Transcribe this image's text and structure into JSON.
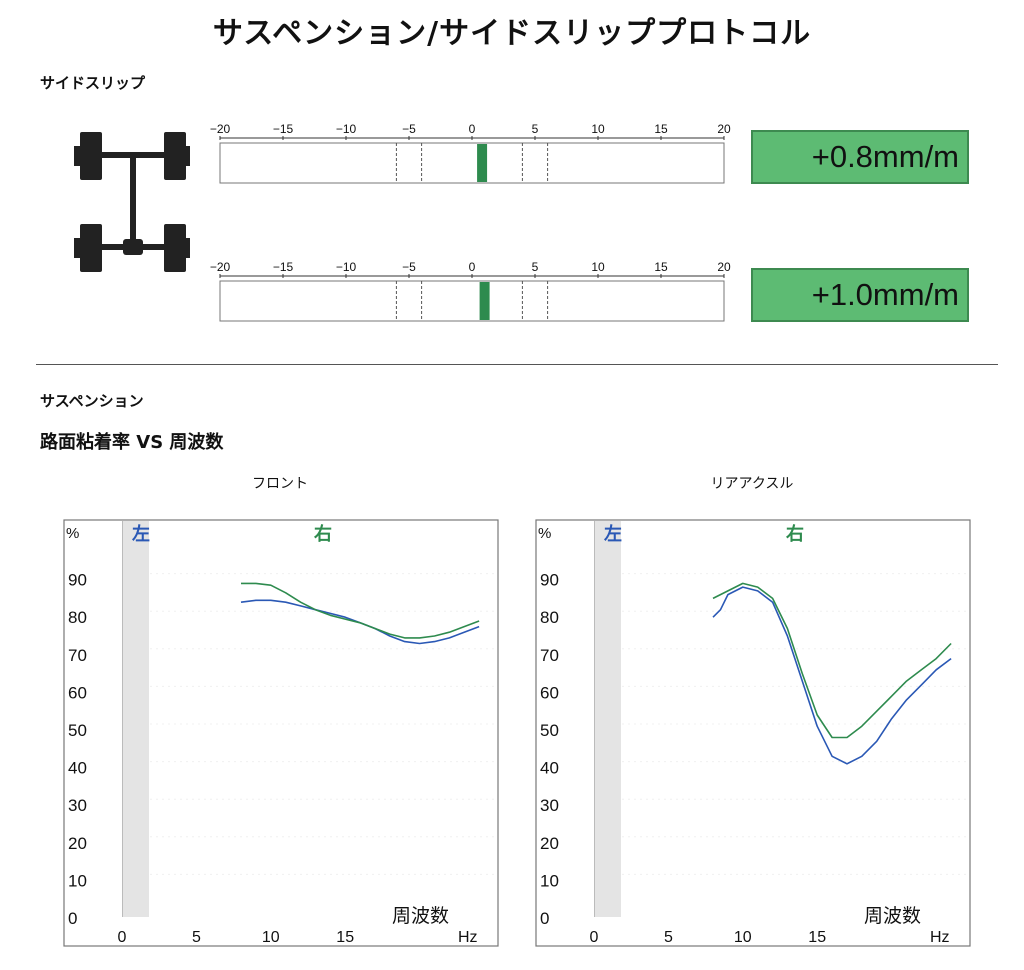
{
  "page": {
    "title": "サスペンション/サイドスリッププロトコル"
  },
  "side_slip": {
    "label": "サイドスリップ",
    "scale_ticks": [
      "−20",
      "−15",
      "−10",
      "−5",
      "0",
      "5",
      "10",
      "15",
      "20"
    ],
    "scale_range": [
      -20,
      20
    ],
    "dashed_markers": [
      -6,
      -4,
      4,
      6
    ],
    "colors": {
      "indicator": "#2e8b4e",
      "readout_bg": "#5dbb73"
    },
    "front": {
      "value": 0.8,
      "readout": "+0.8mm/m"
    },
    "rear": {
      "value": 1.0,
      "readout": "+1.0mm/m"
    }
  },
  "suspension": {
    "label": "サスペンション",
    "subtitle": "路面粘着率 VS 周波数"
  },
  "chart_data": [
    {
      "type": "line",
      "title": "フロント",
      "ylabel": "%",
      "xlabel": "周波数",
      "xunit": "Hz",
      "xlim": [
        0,
        25
      ],
      "ylim": [
        0,
        100
      ],
      "x_ticks": [
        "0",
        "5",
        "10",
        "15"
      ],
      "y_ticks": [
        "0",
        "10",
        "20",
        "30",
        "40",
        "50",
        "60",
        "70",
        "80",
        "90"
      ],
      "legend": [
        {
          "name": "左",
          "color": "#2a58b5"
        },
        {
          "name": "右",
          "color": "#2e8b4e"
        }
      ],
      "series": [
        {
          "name": "左",
          "color": "#2a58b5",
          "x": [
            8,
            9,
            10,
            11,
            12,
            13,
            14,
            15,
            16,
            17,
            18,
            19,
            20,
            21,
            22,
            23,
            24
          ],
          "y": [
            84,
            84.5,
            84.5,
            84,
            83,
            82,
            81,
            80,
            78.5,
            77,
            75,
            73.5,
            73,
            73.5,
            74.5,
            76,
            77.5
          ]
        },
        {
          "name": "右",
          "color": "#2e8b4e",
          "x": [
            8,
            9,
            10,
            11,
            12,
            13,
            14,
            15,
            16,
            17,
            18,
            19,
            20,
            21,
            22,
            23,
            24
          ],
          "y": [
            89,
            89,
            88.5,
            86.5,
            84,
            82,
            80.5,
            79.5,
            78.5,
            77,
            75.5,
            74.5,
            74.5,
            75,
            76,
            77.5,
            79
          ]
        }
      ]
    },
    {
      "type": "line",
      "title": "リアアクスル",
      "ylabel": "%",
      "xlabel": "周波数",
      "xunit": "Hz",
      "xlim": [
        0,
        25
      ],
      "ylim": [
        0,
        100
      ],
      "x_ticks": [
        "0",
        "5",
        "10",
        "15"
      ],
      "y_ticks": [
        "0",
        "10",
        "20",
        "30",
        "40",
        "50",
        "60",
        "70",
        "80",
        "90"
      ],
      "legend": [
        {
          "name": "左",
          "color": "#2a58b5"
        },
        {
          "name": "右",
          "color": "#2e8b4e"
        }
      ],
      "series": [
        {
          "name": "左",
          "color": "#2a58b5",
          "x": [
            8,
            8.5,
            9,
            10,
            11,
            12,
            13,
            14,
            15,
            16,
            17,
            18,
            19,
            20,
            21,
            22,
            23,
            24
          ],
          "y": [
            80,
            82,
            86,
            88,
            87,
            84,
            75,
            63,
            51,
            43,
            41,
            43,
            47,
            53,
            58,
            62,
            66,
            69
          ]
        },
        {
          "name": "右",
          "color": "#2e8b4e",
          "x": [
            8,
            9,
            10,
            11,
            12,
            13,
            14,
            15,
            16,
            17,
            18,
            19,
            20,
            21,
            22,
            23,
            24
          ],
          "y": [
            85,
            87,
            89,
            88,
            85,
            77,
            65,
            54,
            48,
            48,
            51,
            55,
            59,
            63,
            66,
            69,
            73
          ]
        }
      ]
    }
  ]
}
